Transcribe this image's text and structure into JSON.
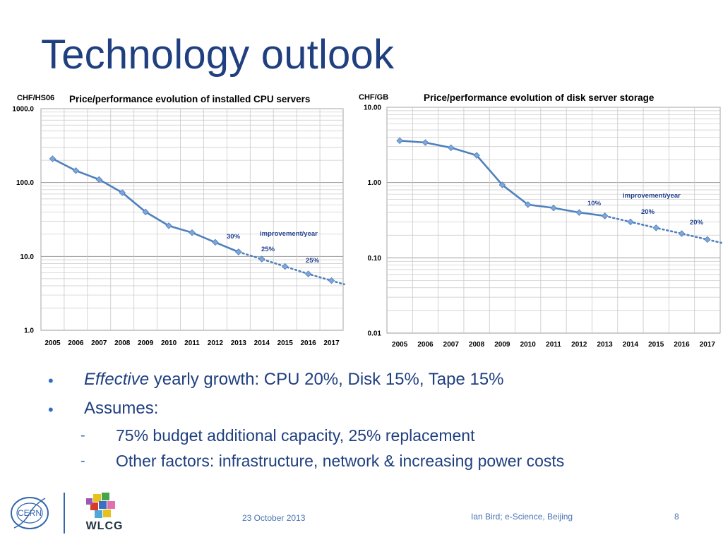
{
  "slide": {
    "title": "Technology outlook",
    "bullets": [
      {
        "em": "Effective",
        "text": " yearly growth: CPU 20%, Disk 15%, Tape 15%"
      },
      {
        "em": "",
        "text": "Assumes:"
      }
    ],
    "sub_bullets": [
      "75% budget additional capacity, 25% replacement",
      "Other factors: infrastructure, network & increasing power costs"
    ],
    "footer": {
      "date": "23 October 2013",
      "author": "Ian Bird; e-Science, Beijing",
      "page": "8",
      "logo_cern": "CERN",
      "logo_wlcg": "WLCG"
    }
  },
  "chart_data": [
    {
      "type": "line",
      "title": "Price/performance evolution of installed CPU servers",
      "ylabel": "CHF/HS06",
      "yscale": "log",
      "ylim": [
        1,
        1000
      ],
      "ytick_labels": [
        "1000.0",
        "100.0",
        "10.0",
        "1.0"
      ],
      "categories": [
        "2005",
        "2006",
        "2007",
        "2008",
        "2009",
        "2010",
        "2011",
        "2012",
        "2013",
        "2014",
        "2015",
        "2016",
        "2017"
      ],
      "series": [
        {
          "values": [
            210,
            145,
            110,
            73,
            40,
            26,
            21,
            15.5,
            11.5,
            null,
            null,
            null,
            null
          ],
          "style": "solid"
        },
        {
          "values": [
            null,
            null,
            null,
            null,
            null,
            null,
            null,
            null,
            11.5,
            9.2,
            7.3,
            5.8,
            4.7
          ],
          "style": "dotted"
        }
      ],
      "annotations": [
        {
          "text": "30%",
          "year": "2013"
        },
        {
          "text": "improvement/year",
          "year": "2015"
        },
        {
          "text": "25%",
          "year": "2014"
        },
        {
          "text": "25%",
          "year": "2016"
        }
      ],
      "grid": true,
      "colors": {
        "line": "#4f81bd",
        "marker": "#7fa6da",
        "annotation": "#1f3f8f"
      }
    },
    {
      "type": "line",
      "title": "Price/performance evolution of disk server storage",
      "ylabel": "CHF/GB",
      "yscale": "log",
      "ylim": [
        0.01,
        10
      ],
      "ytick_labels": [
        "10.00",
        "1.00",
        "0.10",
        "0.01"
      ],
      "categories": [
        "2005",
        "2006",
        "2007",
        "2008",
        "2009",
        "2010",
        "2011",
        "2012",
        "2013",
        "2014",
        "2015",
        "2016",
        "2017"
      ],
      "series": [
        {
          "values": [
            3.6,
            3.4,
            2.9,
            2.3,
            0.93,
            0.51,
            0.46,
            0.4,
            0.36,
            null,
            null,
            null,
            null
          ],
          "style": "solid"
        },
        {
          "values": [
            null,
            null,
            null,
            null,
            null,
            null,
            null,
            null,
            0.36,
            0.3,
            0.25,
            0.21,
            0.175
          ],
          "style": "dotted"
        }
      ],
      "annotations": [
        {
          "text": "10%",
          "year": "2012"
        },
        {
          "text": "improvement/year",
          "year": "2015"
        },
        {
          "text": "20%",
          "year": "2014"
        },
        {
          "text": "20%",
          "year": "2016"
        }
      ],
      "grid": true,
      "colors": {
        "line": "#4f81bd",
        "marker": "#7fa6da",
        "annotation": "#1f3f8f"
      }
    }
  ]
}
